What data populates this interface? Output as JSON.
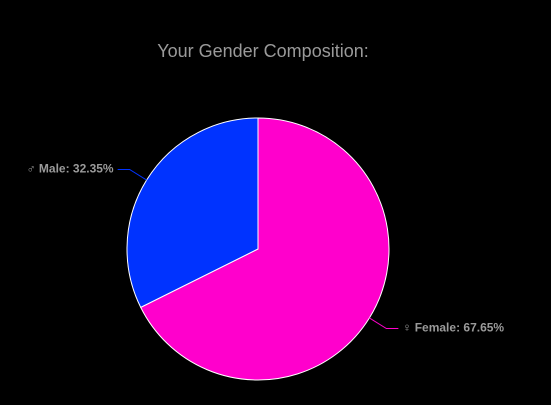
{
  "chart_data": {
    "type": "pie",
    "title": "Your Gender Composition:",
    "values": [
      67.65,
      32.35
    ],
    "value_labels": [
      "♀ Female: 67.65%",
      "♂ Male: 32.35%"
    ],
    "colors": [
      "#ff00cc",
      "#0033ff"
    ]
  }
}
